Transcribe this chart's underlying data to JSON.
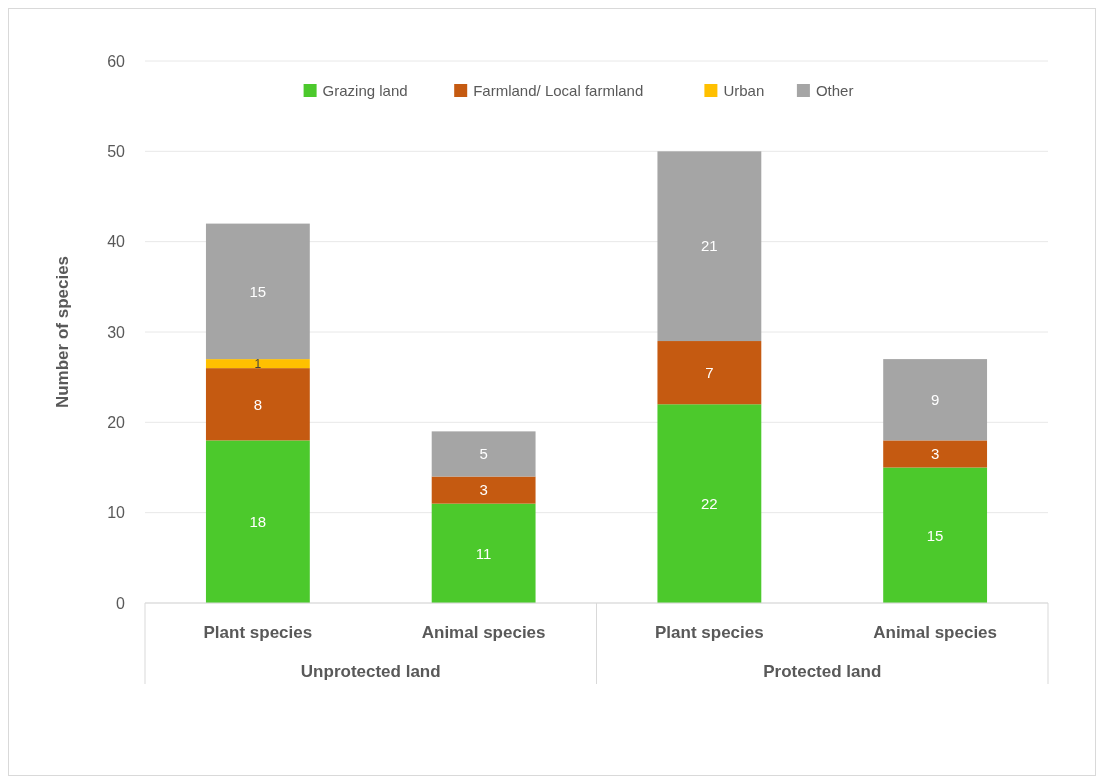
{
  "chart_data": {
    "type": "bar",
    "stacked": true,
    "ylabel": "Number of species",
    "categories": [
      "Plant species",
      "Animal species",
      "Plant species",
      "Animal species"
    ],
    "series": [
      {
        "name": "Grazing land",
        "color": "#4cc92c",
        "values": [
          18,
          11,
          22,
          15
        ]
      },
      {
        "name": "Farmland/ Local farmland",
        "color": "#c55a11",
        "values": [
          8,
          3,
          7,
          3
        ]
      },
      {
        "name": "Urban",
        "color": "#ffc000",
        "values": [
          1,
          null,
          null,
          null
        ]
      },
      {
        "name": "Other",
        "color": "#a5a5a5",
        "values": [
          15,
          5,
          21,
          9
        ]
      }
    ],
    "annotations": [
      "Unprotected land",
      "Protected land"
    ],
    "ylim": [
      0,
      60
    ],
    "yticks": [
      0,
      10,
      20,
      30,
      40,
      50,
      60
    ],
    "grid": "y",
    "legend": "top",
    "data_labels": true
  }
}
